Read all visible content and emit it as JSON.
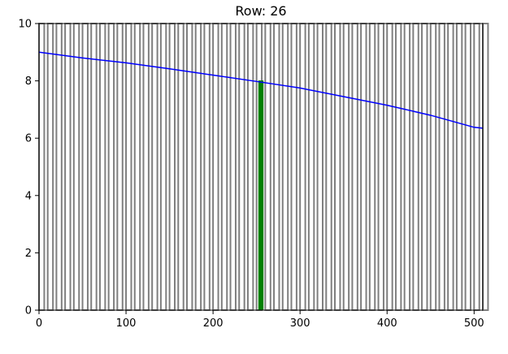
{
  "chart_data": {
    "type": "bar",
    "title": "Row: 26",
    "xlabel": "",
    "ylabel": "",
    "xlim": [
      0,
      510
    ],
    "ylim": [
      0,
      10
    ],
    "xticks": [
      0,
      100,
      200,
      300,
      400,
      500
    ],
    "yticks": [
      0,
      2,
      4,
      6,
      8,
      10
    ],
    "grid": false,
    "bars": {
      "x_start": 0,
      "x_step": 10,
      "count": 52,
      "value": 10,
      "edge_color": "#7f7f7f",
      "highlight_x": 255,
      "highlight_color": "#008000",
      "highlight_value": 8.0
    },
    "line": {
      "color": "#0000ff",
      "x": [
        0,
        50,
        100,
        150,
        200,
        250,
        300,
        350,
        400,
        450,
        500,
        510
      ],
      "y": [
        9.0,
        8.8,
        8.63,
        8.42,
        8.2,
        7.98,
        7.75,
        7.45,
        7.15,
        6.8,
        6.38,
        6.35
      ]
    }
  }
}
